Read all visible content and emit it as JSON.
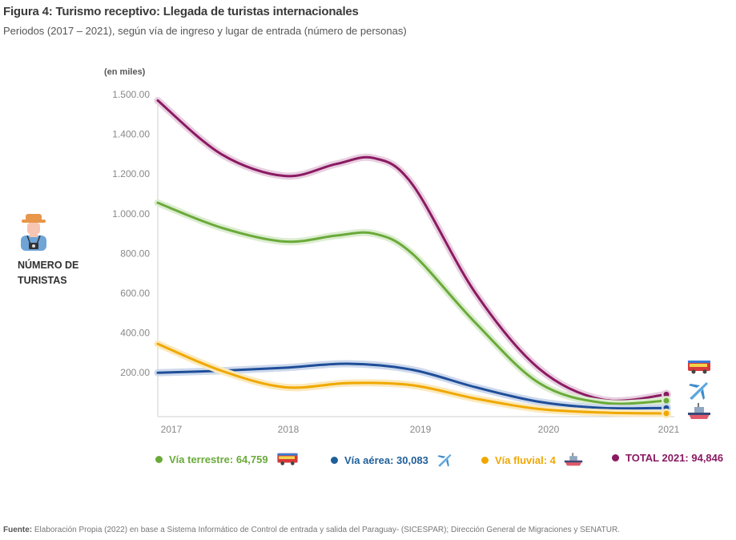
{
  "header": {
    "title": "Figura 4: Turismo receptivo: Llegada de turistas internacionales",
    "subtitle": "Periodos (2017 – 2021), según vía de ingreso y lugar de entrada (número de personas)"
  },
  "side_label": {
    "icon": "tourist-icon",
    "line1": "NÚMERO DE",
    "line2": "TURISTAS"
  },
  "legend": [
    {
      "label": "Vía terrestre: 64,759",
      "color": "#6aaa3a",
      "icon": "bus-icon"
    },
    {
      "label": "Vía aérea: 30,083",
      "color": "#1f4e99",
      "icon": "airplane-icon"
    },
    {
      "label": "Vía fluvial: 4",
      "color": "#f0a800",
      "icon": "ship-icon"
    },
    {
      "label": "TOTAL 2021: 94,846",
      "color": "#8b1a62",
      "icon": ""
    }
  ],
  "source": {
    "label": "Fuente:",
    "text": "Elaboración Propia (2022) en base a Sistema Informático de Control de entrada y salida del Paraguay- (SICESPAR); Dirección General de Migraciones y SENATUR."
  },
  "chart_data": {
    "type": "line",
    "title": "Figura 4: Turismo receptivo: Llegada de turistas internacionales",
    "subtitle": "Periodos (2017 – 2021), según vía de ingreso y lugar de entrada (número de personas)",
    "ylabel": "(en miles)",
    "xlabel": "",
    "categories": [
      "2017",
      "2018",
      "2019",
      "2020",
      "2021"
    ],
    "y_tick_labels": [
      "1.500.00",
      "1.400.00",
      "1.200.00",
      "1.000.00",
      "800.00",
      "600.00",
      "400.00",
      "200.00"
    ],
    "y_tick_values": [
      1500,
      1400,
      1200,
      1000,
      800,
      600,
      400,
      200
    ],
    "ylim": [
      0,
      1500
    ],
    "grid": false,
    "smooth": true,
    "legend_position": "bottom",
    "series": [
      {
        "name": "TOTAL",
        "color": "#8b1a62",
        "halo": "#e8cfe0",
        "points": [
          [
            2017,
            1485
          ],
          [
            2017.5,
            1300
          ],
          [
            2018,
            1190
          ],
          [
            2018.4,
            1250
          ],
          [
            2018.7,
            1280
          ],
          [
            2019,
            1150
          ],
          [
            2019.5,
            600
          ],
          [
            2020,
            220
          ],
          [
            2020.5,
            70
          ],
          [
            2021,
            95
          ]
        ]
      },
      {
        "name": "Vía terrestre",
        "color": "#6aaa3a",
        "halo": "#dcedd0",
        "points": [
          [
            2017,
            1055
          ],
          [
            2017.5,
            930
          ],
          [
            2018,
            860
          ],
          [
            2018.4,
            890
          ],
          [
            2018.7,
            900
          ],
          [
            2019,
            800
          ],
          [
            2019.5,
            450
          ],
          [
            2020,
            150
          ],
          [
            2020.5,
            55
          ],
          [
            2021,
            65
          ]
        ]
      },
      {
        "name": "Vía aérea",
        "color": "#1f4e99",
        "halo": "#cdd9ec",
        "points": [
          [
            2017,
            200
          ],
          [
            2017.5,
            210
          ],
          [
            2018,
            225
          ],
          [
            2018.5,
            245
          ],
          [
            2019,
            215
          ],
          [
            2019.5,
            130
          ],
          [
            2020,
            60
          ],
          [
            2020.5,
            30
          ],
          [
            2021,
            30
          ]
        ]
      },
      {
        "name": "Vía fluvial",
        "color": "#f0a800",
        "halo": "#fbe9bd",
        "points": [
          [
            2017,
            345
          ],
          [
            2017.5,
            210
          ],
          [
            2018,
            130
          ],
          [
            2018.5,
            150
          ],
          [
            2019,
            140
          ],
          [
            2019.5,
            75
          ],
          [
            2020,
            25
          ],
          [
            2020.5,
            8
          ],
          [
            2021,
            4
          ]
        ]
      }
    ]
  }
}
